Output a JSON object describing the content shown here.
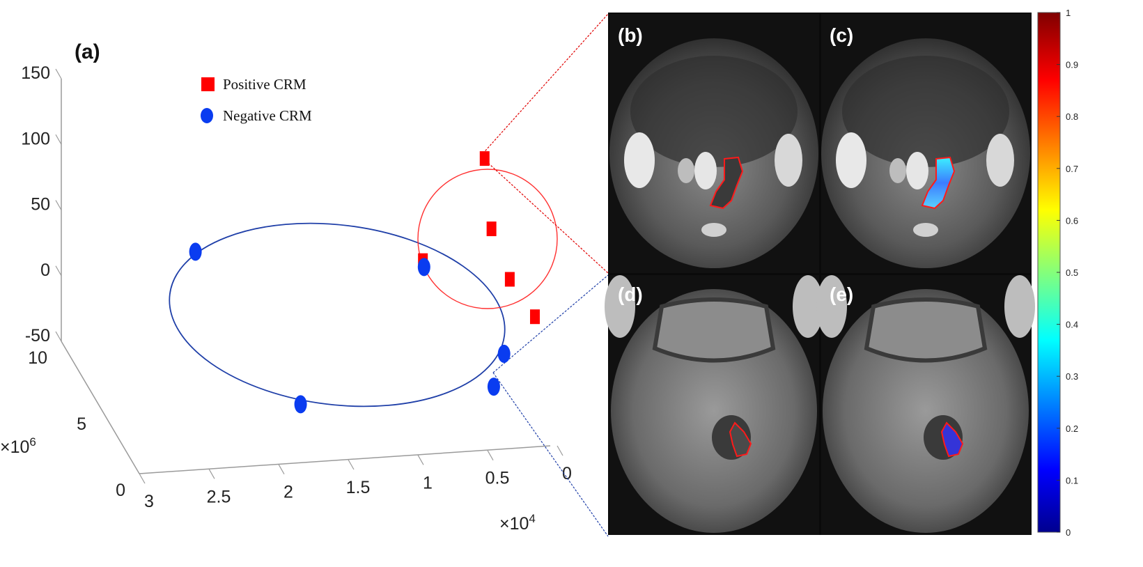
{
  "chart_data": {
    "type": "scatter",
    "panel_label": "(a)",
    "z_ticks": [
      "150",
      "100",
      "50",
      "0",
      "-50"
    ],
    "y_ticks": [
      "10",
      "5",
      "0"
    ],
    "y_multiplier": {
      "base": "×10",
      "exp": "6"
    },
    "x_ticks": [
      "3",
      "2.5",
      "2",
      "1.5",
      "1",
      "0.5",
      "0"
    ],
    "x_multiplier": {
      "base": "×10",
      "exp": "4"
    },
    "legend": {
      "placement": "top-left",
      "entries": [
        {
          "label": "Positive CRM",
          "color": "#ff0000",
          "marker": "square"
        },
        {
          "label": "Negative CRM",
          "color": "#0a3cf0",
          "marker": "circle"
        }
      ]
    },
    "series": [
      {
        "name": "Positive CRM",
        "color": "#ff0000",
        "marker": "square",
        "projected_points": [
          [
            0.424,
            0.279
          ],
          [
            0.43,
            0.403
          ],
          [
            0.446,
            0.492
          ],
          [
            0.468,
            0.558
          ],
          [
            0.37,
            0.459
          ]
        ]
      },
      {
        "name": "Negative CRM",
        "color": "#0a3cf0",
        "marker": "circle",
        "projected_points": [
          [
            0.171,
            0.444
          ],
          [
            0.371,
            0.471
          ],
          [
            0.441,
            0.624
          ],
          [
            0.432,
            0.682
          ],
          [
            0.263,
            0.713
          ]
        ]
      }
    ],
    "cluster_outlines": [
      {
        "series": "Positive CRM",
        "shape": "circle",
        "color": "#ff0000"
      },
      {
        "series": "Negative CRM",
        "shape": "ellipse",
        "color": "#1f3fa8"
      }
    ]
  },
  "images": {
    "panels": [
      {
        "label": "(b)",
        "overlay": "contour"
      },
      {
        "label": "(c)",
        "overlay": "heatmap"
      },
      {
        "label": "(d)",
        "overlay": "contour"
      },
      {
        "label": "(e)",
        "overlay": "heatmap"
      }
    ],
    "colorbar": {
      "ticks": [
        "1",
        "0.9",
        "0.8",
        "0.7",
        "0.6",
        "0.5",
        "0.4",
        "0.3",
        "0.2",
        "0.1",
        "0"
      ],
      "colormap": "jet"
    }
  }
}
